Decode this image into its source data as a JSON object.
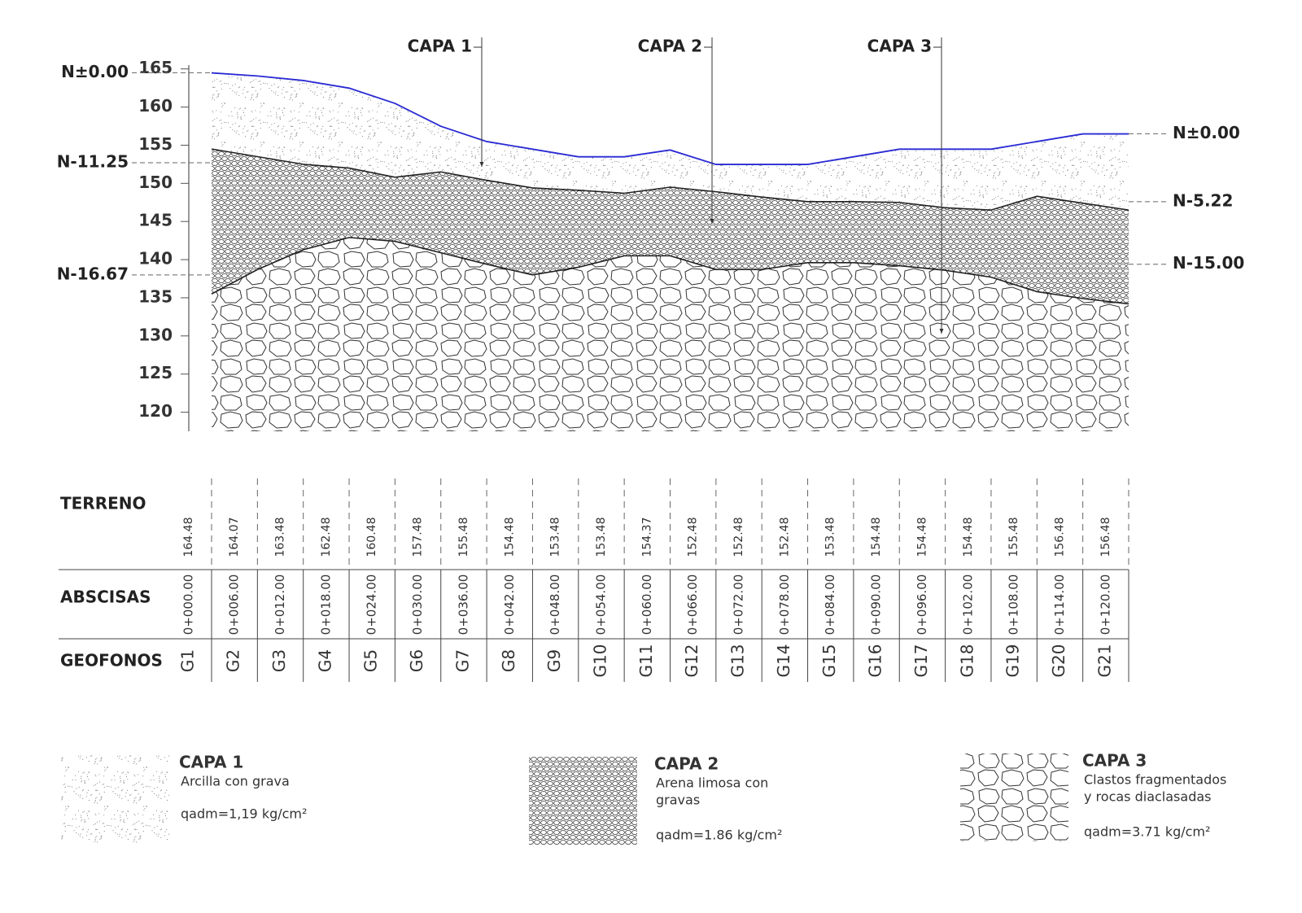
{
  "chart_data": {
    "type": "profile",
    "x": [
      0,
      6,
      12,
      18,
      24,
      30,
      36,
      42,
      48,
      54,
      60,
      66,
      72,
      78,
      84,
      90,
      96,
      102,
      108,
      114,
      120
    ],
    "xlim": [
      0,
      120
    ],
    "xticks": [
      {
        "value": 0,
        "label": "0+000.00"
      },
      {
        "value": 6,
        "label": "0+006.00"
      },
      {
        "value": 12,
        "label": "0+012.00"
      },
      {
        "value": 18,
        "label": "0+018.00"
      },
      {
        "value": 24,
        "label": "0+024.00"
      },
      {
        "value": 30,
        "label": "0+030.00"
      },
      {
        "value": 36,
        "label": "0+036.00"
      },
      {
        "value": 42,
        "label": "0+042.00"
      },
      {
        "value": 48,
        "label": "0+048.00"
      },
      {
        "value": 54,
        "label": "0+054.00"
      },
      {
        "value": 60,
        "label": "0+060.00"
      },
      {
        "value": 66,
        "label": "0+066.00"
      },
      {
        "value": 72,
        "label": "0+072.00"
      },
      {
        "value": 78,
        "label": "0+078.00"
      },
      {
        "value": 84,
        "label": "0+084.00"
      },
      {
        "value": 90,
        "label": "0+090.00"
      },
      {
        "value": 96,
        "label": "0+096.00"
      },
      {
        "value": 102,
        "label": "0+102.00"
      },
      {
        "value": 108,
        "label": "0+108.00"
      },
      {
        "value": 114,
        "label": "0+114.00"
      },
      {
        "value": 120,
        "label": "0+120.00"
      }
    ],
    "xlabel": "ABSCISAS",
    "ylim": [
      117.5,
      165.5
    ],
    "yticks": [
      120,
      125,
      130,
      135,
      140,
      145,
      150,
      155,
      160,
      165
    ],
    "series": [
      {
        "name": "TERRENO",
        "color": "#2a2ad4",
        "values": [
          164.48,
          164.07,
          163.48,
          162.48,
          160.48,
          157.48,
          155.48,
          154.48,
          153.48,
          153.48,
          154.37,
          152.48,
          152.48,
          152.48,
          153.48,
          154.48,
          154.48,
          154.48,
          155.48,
          156.48,
          156.48
        ]
      }
    ],
    "boundaries": [
      {
        "color": "#222222",
        "values": [
          154.5,
          153.5,
          152.5,
          152.0,
          150.8,
          151.5,
          150.4,
          149.4,
          149.1,
          148.7,
          149.5,
          148.9,
          148.2,
          147.6,
          147.6,
          147.5,
          146.8,
          146.5,
          148.3,
          147.4,
          146.5
        ]
      },
      {
        "color": "#222222",
        "values": [
          135.5,
          138.7,
          141.3,
          142.9,
          142.4,
          140.9,
          139.4,
          138.0,
          139.0,
          140.5,
          140.5,
          138.7,
          138.7,
          139.6,
          139.6,
          139.2,
          138.6,
          137.7,
          135.8,
          134.9,
          134.2
        ]
      }
    ],
    "geophones_label": "GEOFONOS",
    "geophones": [
      "G1",
      "G2",
      "G3",
      "G4",
      "G5",
      "G6",
      "G7",
      "G8",
      "G9",
      "G10",
      "G11",
      "G12",
      "G13",
      "G14",
      "G15",
      "G16",
      "G17",
      "G18",
      "G19",
      "G20",
      "G21"
    ],
    "annotations": [
      {
        "label": "N±0.00",
        "level": 164.5,
        "side": "left"
      },
      {
        "label": "N-11.25",
        "level": 152.7,
        "side": "left"
      },
      {
        "label": "N-16.67",
        "level": 138.0,
        "side": "left"
      },
      {
        "label": "N±0.00",
        "level": 156.5,
        "side": "right"
      },
      {
        "label": "N-5.22",
        "level": 147.6,
        "side": "right"
      },
      {
        "label": "N-15.00",
        "level": 139.4,
        "side": "right"
      }
    ],
    "layers": [
      {
        "name": "CAPA 1",
        "description": [
          "Arcilla con grava"
        ],
        "capacity": "qadm=1,19 kg/cm²"
      },
      {
        "name": "CAPA 2",
        "description": [
          "Arena limosa con",
          "gravas"
        ],
        "capacity": "qadm=1.86 kg/cm²"
      },
      {
        "name": "CAPA 3",
        "description": [
          "Clastos fragmentados",
          "y rocas diaclasadas"
        ],
        "capacity": "qadm=3.71 kg/cm²"
      }
    ]
  }
}
